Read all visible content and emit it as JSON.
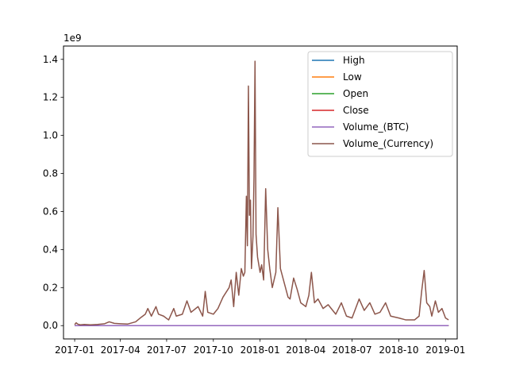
{
  "chart_data": {
    "type": "line",
    "title": "",
    "xlabel": "",
    "ylabel": "",
    "y_offset_label": "1e9",
    "y_scale": 1000000000,
    "xlim": [
      "2016-12-10",
      "2019-01-24"
    ],
    "ylim": [
      -0.07,
      1.47
    ],
    "grid": false,
    "legend_position": "top-right",
    "x_ticks": [
      {
        "date": "2017-01-01",
        "label": "2017-01"
      },
      {
        "date": "2017-04-01",
        "label": "2017-04"
      },
      {
        "date": "2017-07-01",
        "label": "2017-07"
      },
      {
        "date": "2017-10-01",
        "label": "2017-10"
      },
      {
        "date": "2018-01-01",
        "label": "2018-01"
      },
      {
        "date": "2018-04-01",
        "label": "2018-04"
      },
      {
        "date": "2018-07-01",
        "label": "2018-07"
      },
      {
        "date": "2018-10-01",
        "label": "2018-10"
      },
      {
        "date": "2019-01-01",
        "label": "2019-01"
      }
    ],
    "y_ticks": [
      {
        "value": 0.0,
        "label": "0.0"
      },
      {
        "value": 0.2,
        "label": "0.2"
      },
      {
        "value": 0.4,
        "label": "0.4"
      },
      {
        "value": 0.6,
        "label": "0.6"
      },
      {
        "value": 0.8,
        "label": "0.8"
      },
      {
        "value": 1.0,
        "label": "1.0"
      },
      {
        "value": 1.2,
        "label": "1.2"
      },
      {
        "value": 1.4,
        "label": "1.4"
      }
    ],
    "series": [
      {
        "name": "High",
        "color": "#1f77b4",
        "points": [
          [
            "2017-01-01",
            1e-06
          ],
          [
            "2019-01-07",
            4e-06
          ]
        ]
      },
      {
        "name": "Low",
        "color": "#ff7f0e",
        "points": [
          [
            "2017-01-01",
            1e-06
          ],
          [
            "2019-01-07",
            4e-06
          ]
        ]
      },
      {
        "name": "Open",
        "color": "#2ca02c",
        "points": [
          [
            "2017-01-01",
            1e-06
          ],
          [
            "2019-01-07",
            4e-06
          ]
        ]
      },
      {
        "name": "Close",
        "color": "#d62728",
        "points": [
          [
            "2017-01-01",
            1e-06
          ],
          [
            "2019-01-07",
            4e-06
          ]
        ]
      },
      {
        "name": "Volume_(BTC)",
        "color": "#9467bd",
        "points": [
          [
            "2017-01-01",
            1e-05
          ],
          [
            "2019-01-07",
            1e-05
          ]
        ]
      },
      {
        "name": "Volume_(Currency)",
        "color": "#8c564b",
        "points": [
          [
            "2017-01-01",
            0.005
          ],
          [
            "2017-01-04",
            0.015
          ],
          [
            "2017-01-07",
            0.008
          ],
          [
            "2017-01-12",
            0.004
          ],
          [
            "2017-01-20",
            0.006
          ],
          [
            "2017-02-01",
            0.004
          ],
          [
            "2017-02-15",
            0.006
          ],
          [
            "2017-03-01",
            0.01
          ],
          [
            "2017-03-10",
            0.02
          ],
          [
            "2017-03-20",
            0.012
          ],
          [
            "2017-04-01",
            0.01
          ],
          [
            "2017-04-15",
            0.008
          ],
          [
            "2017-05-01",
            0.02
          ],
          [
            "2017-05-10",
            0.04
          ],
          [
            "2017-05-20",
            0.06
          ],
          [
            "2017-05-25",
            0.09
          ],
          [
            "2017-06-01",
            0.05
          ],
          [
            "2017-06-10",
            0.1
          ],
          [
            "2017-06-15",
            0.06
          ],
          [
            "2017-06-25",
            0.05
          ],
          [
            "2017-07-05",
            0.03
          ],
          [
            "2017-07-15",
            0.09
          ],
          [
            "2017-07-20",
            0.05
          ],
          [
            "2017-08-01",
            0.06
          ],
          [
            "2017-08-10",
            0.13
          ],
          [
            "2017-08-18",
            0.07
          ],
          [
            "2017-09-01",
            0.1
          ],
          [
            "2017-09-10",
            0.05
          ],
          [
            "2017-09-15",
            0.18
          ],
          [
            "2017-09-20",
            0.07
          ],
          [
            "2017-10-01",
            0.06
          ],
          [
            "2017-10-10",
            0.09
          ],
          [
            "2017-10-20",
            0.15
          ],
          [
            "2017-11-01",
            0.2
          ],
          [
            "2017-11-05",
            0.24
          ],
          [
            "2017-11-10",
            0.1
          ],
          [
            "2017-11-15",
            0.28
          ],
          [
            "2017-11-20",
            0.16
          ],
          [
            "2017-11-25",
            0.3
          ],
          [
            "2017-11-29",
            0.26
          ],
          [
            "2017-12-02",
            0.28
          ],
          [
            "2017-12-05",
            0.68
          ],
          [
            "2017-12-07",
            0.42
          ],
          [
            "2017-12-09",
            1.26
          ],
          [
            "2017-12-11",
            0.58
          ],
          [
            "2017-12-13",
            0.66
          ],
          [
            "2017-12-15",
            0.3
          ],
          [
            "2017-12-18",
            0.47
          ],
          [
            "2017-12-20",
            0.78
          ],
          [
            "2017-12-22",
            1.39
          ],
          [
            "2017-12-24",
            0.48
          ],
          [
            "2017-12-27",
            0.36
          ],
          [
            "2018-01-01",
            0.28
          ],
          [
            "2018-01-04",
            0.32
          ],
          [
            "2018-01-08",
            0.24
          ],
          [
            "2018-01-12",
            0.72
          ],
          [
            "2018-01-16",
            0.4
          ],
          [
            "2018-01-20",
            0.3
          ],
          [
            "2018-01-25",
            0.2
          ],
          [
            "2018-02-01",
            0.28
          ],
          [
            "2018-02-05",
            0.62
          ],
          [
            "2018-02-10",
            0.3
          ],
          [
            "2018-02-18",
            0.22
          ],
          [
            "2018-02-25",
            0.15
          ],
          [
            "2018-03-01",
            0.14
          ],
          [
            "2018-03-08",
            0.25
          ],
          [
            "2018-03-15",
            0.19
          ],
          [
            "2018-03-22",
            0.12
          ],
          [
            "2018-04-01",
            0.1
          ],
          [
            "2018-04-07",
            0.16
          ],
          [
            "2018-04-12",
            0.28
          ],
          [
            "2018-04-18",
            0.12
          ],
          [
            "2018-04-25",
            0.14
          ],
          [
            "2018-05-05",
            0.09
          ],
          [
            "2018-05-15",
            0.11
          ],
          [
            "2018-05-30",
            0.06
          ],
          [
            "2018-06-10",
            0.12
          ],
          [
            "2018-06-20",
            0.05
          ],
          [
            "2018-07-01",
            0.04
          ],
          [
            "2018-07-15",
            0.14
          ],
          [
            "2018-07-25",
            0.08
          ],
          [
            "2018-08-05",
            0.12
          ],
          [
            "2018-08-15",
            0.06
          ],
          [
            "2018-08-25",
            0.07
          ],
          [
            "2018-09-05",
            0.12
          ],
          [
            "2018-09-15",
            0.05
          ],
          [
            "2018-10-01",
            0.04
          ],
          [
            "2018-10-15",
            0.03
          ],
          [
            "2018-11-01",
            0.03
          ],
          [
            "2018-11-10",
            0.05
          ],
          [
            "2018-11-15",
            0.18
          ],
          [
            "2018-11-20",
            0.29
          ],
          [
            "2018-11-25",
            0.12
          ],
          [
            "2018-12-01",
            0.1
          ],
          [
            "2018-12-05",
            0.05
          ],
          [
            "2018-12-12",
            0.13
          ],
          [
            "2018-12-18",
            0.07
          ],
          [
            "2018-12-25",
            0.09
          ],
          [
            "2019-01-01",
            0.04
          ],
          [
            "2019-01-07",
            0.03
          ]
        ]
      }
    ]
  }
}
